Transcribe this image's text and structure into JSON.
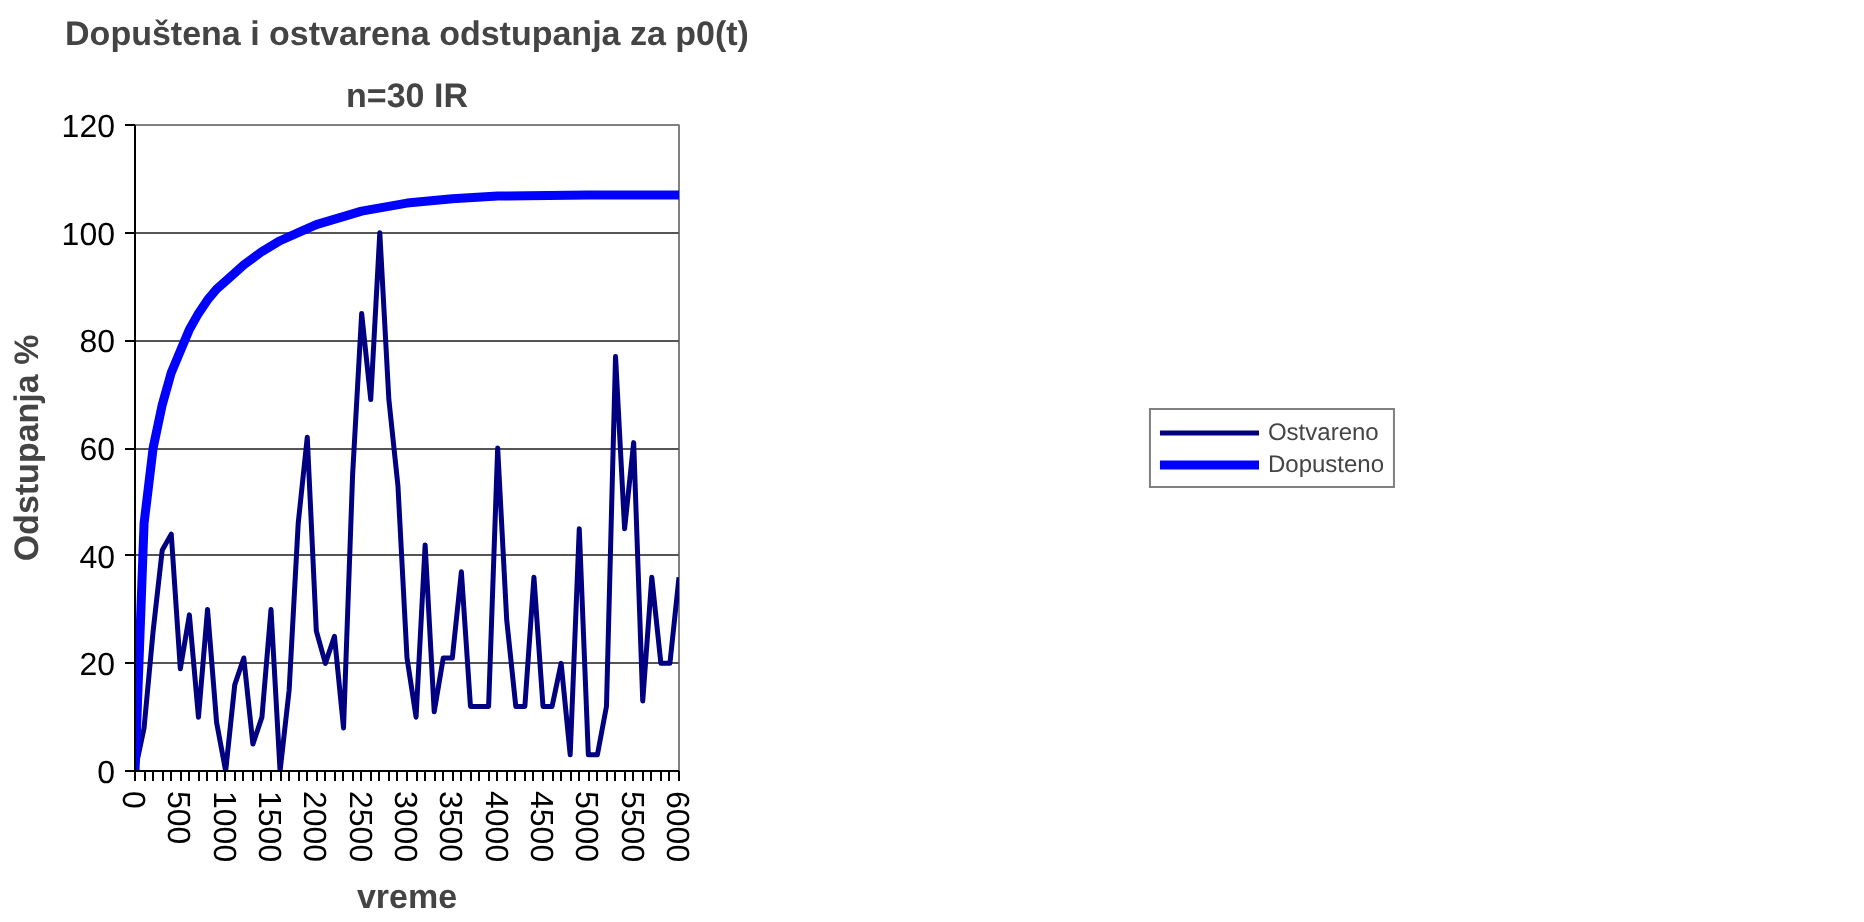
{
  "chart_data": {
    "type": "line",
    "title": "Dopuštena i ostvarena odstupanja za p0(t)",
    "subtitle": "n=30 IR",
    "xlabel": "vreme",
    "ylabel": "Odstupanja %",
    "x": [
      0,
      100,
      200,
      300,
      400,
      500,
      600,
      700,
      800,
      900,
      1000,
      1100,
      1200,
      1300,
      1400,
      1500,
      1600,
      1700,
      1800,
      1900,
      2000,
      2100,
      2200,
      2300,
      2400,
      2500,
      2600,
      2700,
      2800,
      2900,
      3000,
      3100,
      3200,
      3300,
      3400,
      3500,
      3600,
      3700,
      3800,
      3900,
      4000,
      4100,
      4200,
      4300,
      4400,
      4500,
      4600,
      4700,
      4800,
      4900,
      5000,
      5100,
      5200,
      5300,
      5400,
      5500,
      5600,
      5700,
      5800,
      5900,
      6000
    ],
    "series": [
      {
        "name": "Ostvareno",
        "color": "#000080",
        "values": [
          0,
          8,
          26,
          41,
          44,
          19,
          29,
          10,
          30,
          9,
          0,
          16,
          21,
          5,
          10,
          30,
          0,
          15,
          46,
          62,
          26,
          20,
          25,
          8,
          55,
          85,
          69,
          100,
          69,
          53,
          21,
          10,
          42,
          11,
          21,
          21,
          37,
          12,
          12,
          12,
          60,
          28,
          12,
          12,
          36,
          12,
          12,
          20,
          3,
          45,
          3,
          3,
          12,
          77,
          45,
          61,
          13,
          36,
          20,
          20,
          36
        ]
      },
      {
        "name": "Dopusteno",
        "color": "#0000ff",
        "x": [
          0,
          100,
          200,
          300,
          400,
          500,
          600,
          700,
          800,
          900,
          1000,
          1200,
          1400,
          1600,
          1800,
          2000,
          2500,
          3000,
          3500,
          4000,
          5000,
          6000
        ],
        "values": [
          0,
          46,
          60,
          68,
          74,
          78,
          82,
          85,
          87.5,
          89.5,
          91,
          94,
          96.5,
          98.5,
          100,
          101.5,
          104,
          105.5,
          106.3,
          106.8,
          107,
          107
        ]
      }
    ],
    "xlim": [
      0,
      6000
    ],
    "xticks": [
      0,
      500,
      1000,
      1500,
      2000,
      2500,
      3000,
      3500,
      4000,
      4500,
      5000,
      5500,
      6000
    ],
    "ylim": [
      0,
      120
    ],
    "yticks": [
      0,
      20,
      40,
      60,
      80,
      100,
      120
    ],
    "grid": "y",
    "legend": "right",
    "marker": "none",
    "line_style": "solid"
  }
}
